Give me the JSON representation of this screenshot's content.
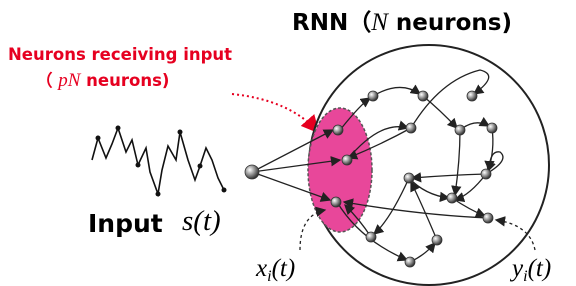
{
  "title": {
    "prefix": "RNN（",
    "variable": "N",
    "suffix": " neurons)"
  },
  "input_group": {
    "line1": "Neurons receiving input",
    "line2_prefix": "（ ",
    "line2_variable": "pN",
    "line2_suffix": " neurons)"
  },
  "input": {
    "label": "Input",
    "signal": "s(t)"
  },
  "state": {
    "symbol": "x",
    "subscript": "i",
    "argument": "(t)"
  },
  "output": {
    "symbol": "y",
    "subscript": "i",
    "argument": "(t)"
  }
}
